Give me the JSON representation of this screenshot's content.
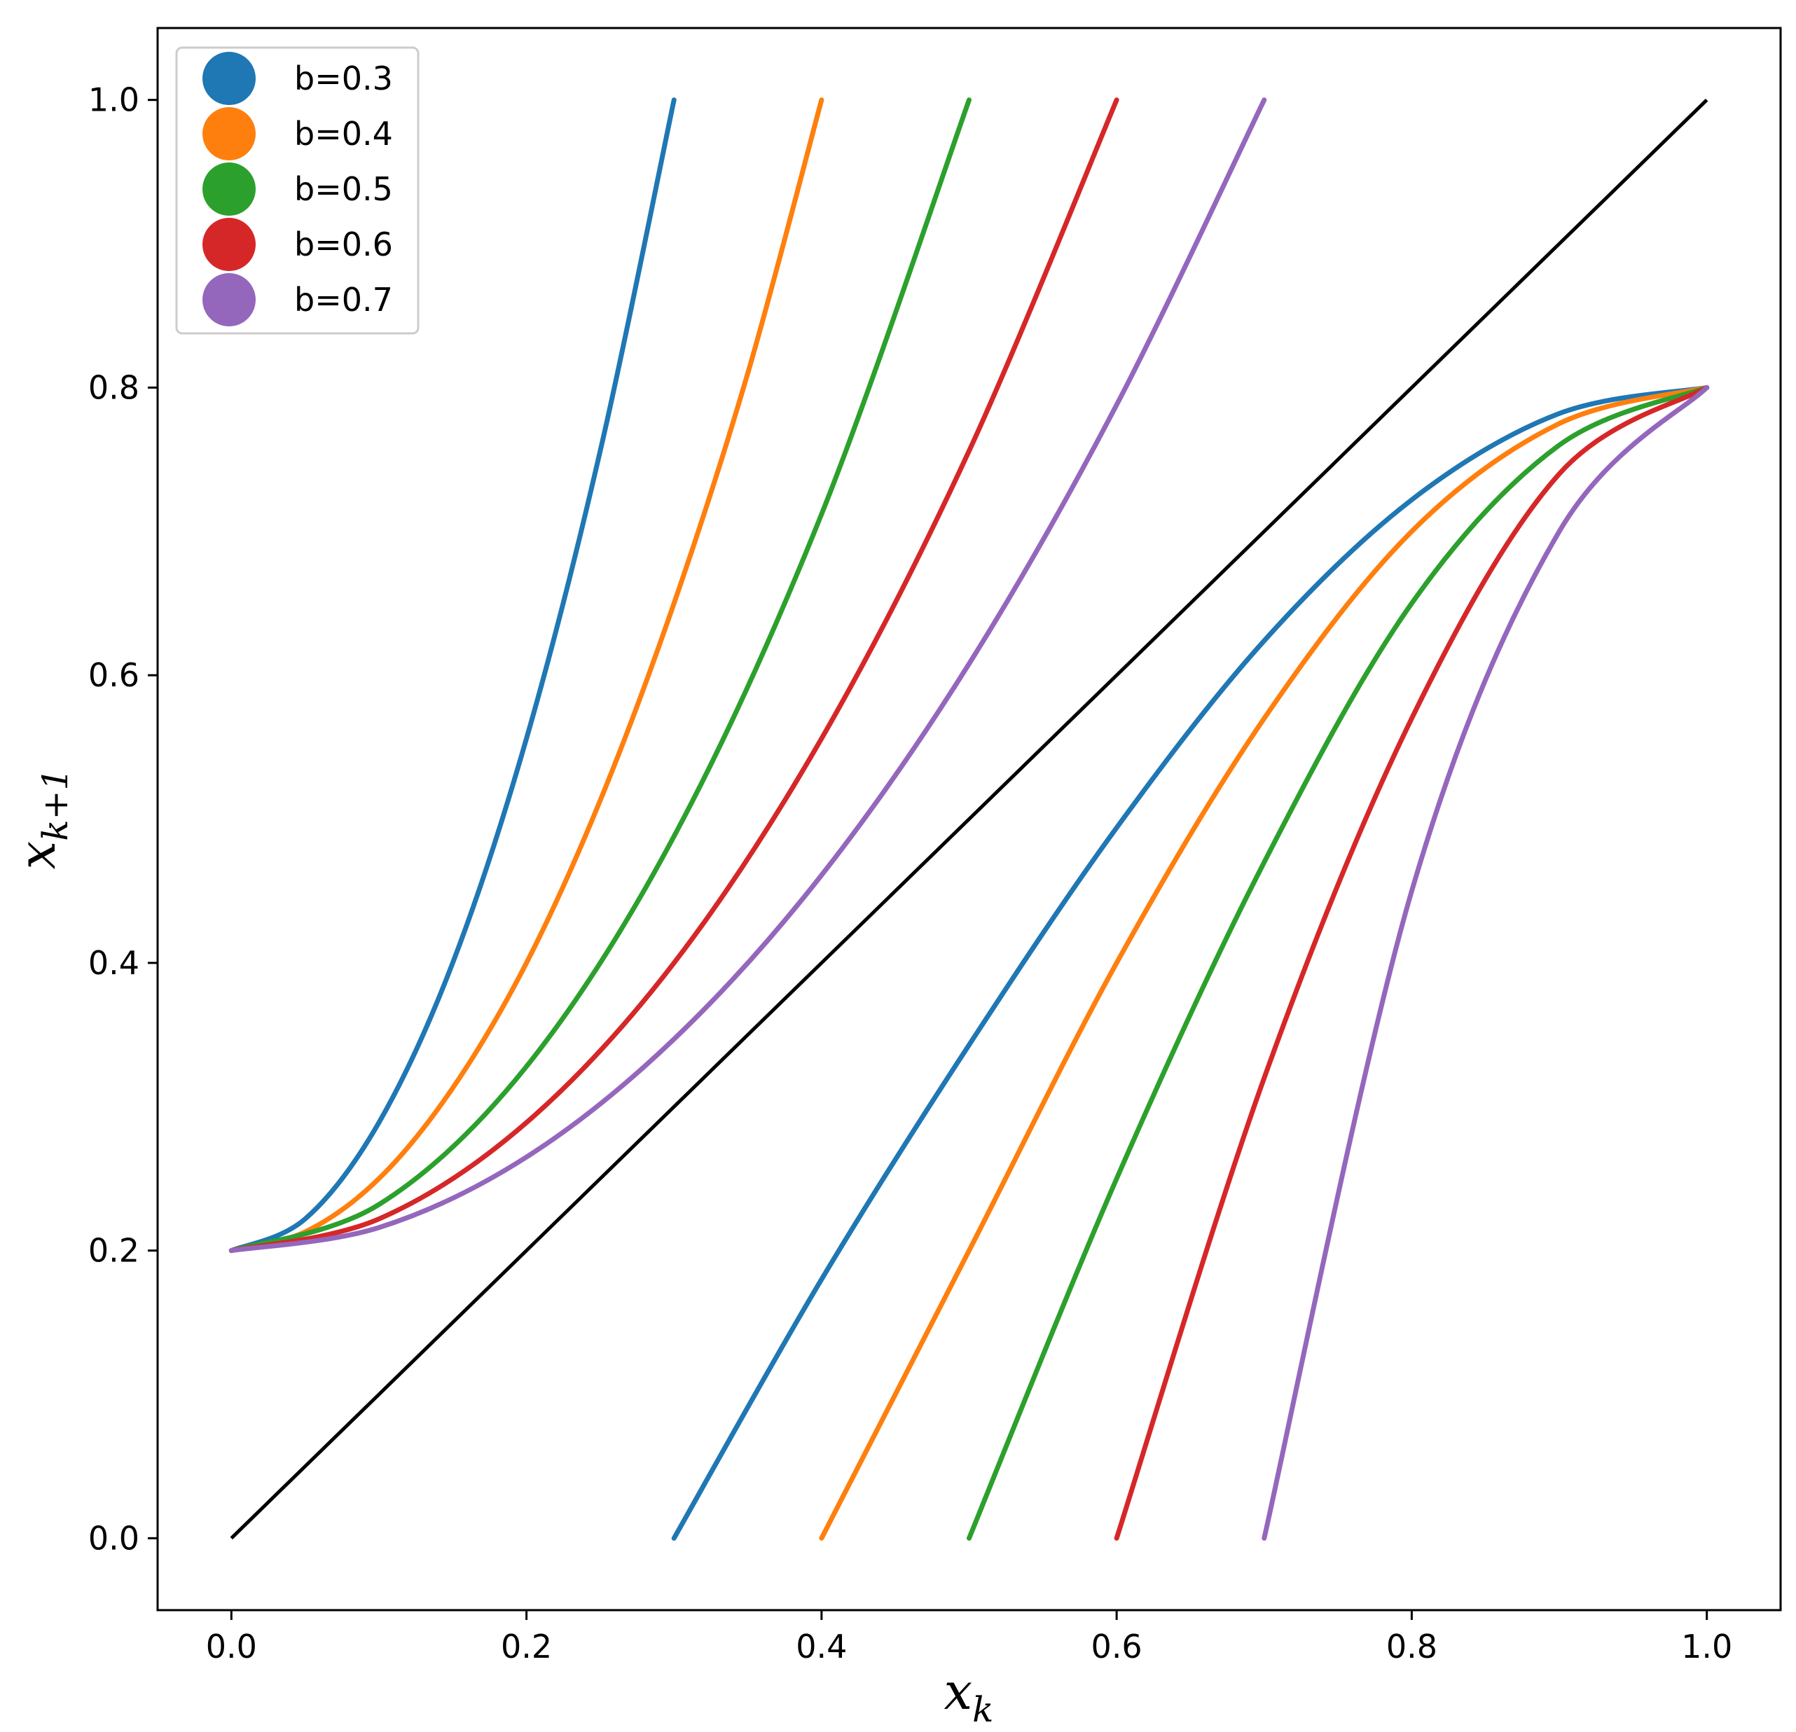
{
  "chart_data": {
    "type": "line",
    "title": "",
    "xlabel": "x",
    "xlabel_sub": "k",
    "ylabel": "x",
    "ylabel_sub": "k+1",
    "xlim": [
      -0.05,
      1.05
    ],
    "ylim": [
      -0.05,
      1.05
    ],
    "xticks": [
      0.0,
      0.2,
      0.4,
      0.6,
      0.8,
      1.0
    ],
    "xtick_labels": [
      "0.0",
      "0.2",
      "0.4",
      "0.6",
      "0.8",
      "1.0"
    ],
    "yticks": [
      0.0,
      0.2,
      0.4,
      0.6,
      0.8,
      1.0
    ],
    "ytick_labels": [
      "0.0",
      "0.2",
      "0.4",
      "0.6",
      "0.8",
      "1.0"
    ],
    "grid": false,
    "legend_position": "top-left",
    "identity_line": {
      "x": [
        0,
        1
      ],
      "y": [
        0,
        1
      ],
      "color": "#000000"
    },
    "series": [
      {
        "name": "b=0.3",
        "color": "#1f77b4",
        "segments": [
          {
            "x": [
              0.0,
              0.05,
              0.1,
              0.15,
              0.2,
              0.25,
              0.3
            ],
            "y": [
              0.2,
              0.222,
              0.289,
              0.4,
              0.556,
              0.756,
              1.0
            ]
          },
          {
            "x": [
              0.3,
              0.4,
              0.5,
              0.6,
              0.7,
              0.8,
              0.9,
              1.0
            ],
            "y": [
              0.0,
              0.18,
              0.343,
              0.494,
              0.624,
              0.722,
              0.782,
              0.8
            ]
          }
        ]
      },
      {
        "name": "b=0.4",
        "color": "#ff7f0e",
        "segments": [
          {
            "x": [
              0.0,
              0.05,
              0.1,
              0.15,
              0.2,
              0.25,
              0.3,
              0.35,
              0.4
            ],
            "y": [
              0.2,
              0.213,
              0.25,
              0.313,
              0.4,
              0.513,
              0.65,
              0.81,
              1.0
            ]
          },
          {
            "x": [
              0.4,
              0.5,
              0.6,
              0.7,
              0.8,
              0.9,
              1.0
            ],
            "y": [
              0.0,
              0.2,
              0.4,
              0.57,
              0.7,
              0.775,
              0.8
            ]
          }
        ]
      },
      {
        "name": "b=0.5",
        "color": "#2ca02c",
        "segments": [
          {
            "x": [
              0.0,
              0.1,
              0.2,
              0.3,
              0.4,
              0.5
            ],
            "y": [
              0.2,
              0.232,
              0.328,
              0.488,
              0.712,
              1.0
            ]
          },
          {
            "x": [
              0.5,
              0.6,
              0.7,
              0.8,
              0.9,
              1.0
            ],
            "y": [
              0.0,
              0.25,
              0.47,
              0.65,
              0.76,
              0.8
            ]
          }
        ]
      },
      {
        "name": "b=0.6",
        "color": "#d62728",
        "segments": [
          {
            "x": [
              0.0,
              0.1,
              0.2,
              0.3,
              0.4,
              0.5,
              0.6
            ],
            "y": [
              0.2,
              0.222,
              0.289,
              0.4,
              0.556,
              0.756,
              1.0
            ]
          },
          {
            "x": [
              0.6,
              0.7,
              0.8,
              0.9,
              1.0
            ],
            "y": [
              0.0,
              0.32,
              0.57,
              0.74,
              0.8
            ]
          }
        ]
      },
      {
        "name": "b=0.7",
        "color": "#9467bd",
        "segments": [
          {
            "x": [
              0.0,
              0.1,
              0.2,
              0.3,
              0.4,
              0.5,
              0.6,
              0.7
            ],
            "y": [
              0.2,
              0.216,
              0.265,
              0.347,
              0.461,
              0.608,
              0.788,
              1.0
            ]
          },
          {
            "x": [
              0.7,
              0.8,
              0.9,
              1.0
            ],
            "y": [
              0.0,
              0.45,
              0.7,
              0.8
            ]
          }
        ]
      }
    ]
  }
}
